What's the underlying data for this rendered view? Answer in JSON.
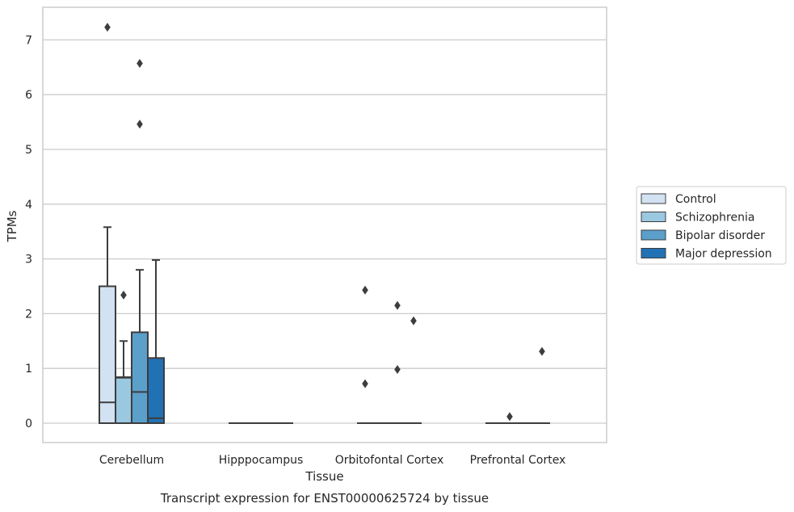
{
  "caption": "Transcript expression for ENST00000625724 by tissue",
  "chart_data": {
    "type": "box",
    "xlabel": "Tissue",
    "ylabel": "TPMs",
    "ylim": [
      -0.35,
      7.6
    ],
    "yticks": [
      0,
      1,
      2,
      3,
      4,
      5,
      6,
      7
    ],
    "grid": "horizontal",
    "legend_position": "right",
    "categories": [
      "Cerebellum",
      "Hipppocampus",
      "Orbitofontal Cortex",
      "Prefrontal Cortex"
    ],
    "series": [
      {
        "name": "Control",
        "color": "#d2e2f2",
        "boxes": [
          {
            "category": "Cerebellum",
            "whisker_low": 0,
            "q1": 0,
            "median": 0.38,
            "q3": 2.5,
            "whisker_high": 3.58,
            "outliers": [
              7.23
            ]
          },
          {
            "category": "Hipppocampus",
            "whisker_low": 0,
            "q1": 0,
            "median": 0,
            "q3": 0,
            "whisker_high": 0,
            "outliers": []
          },
          {
            "category": "Orbitofontal Cortex",
            "whisker_low": 0,
            "q1": 0,
            "median": 0,
            "q3": 0,
            "whisker_high": 0,
            "outliers": [
              2.43,
              0.72
            ]
          },
          {
            "category": "Prefrontal Cortex",
            "whisker_low": 0,
            "q1": 0,
            "median": 0,
            "q3": 0,
            "whisker_high": 0,
            "outliers": []
          }
        ]
      },
      {
        "name": "Schizophrenia",
        "color": "#9ac8e0",
        "boxes": [
          {
            "category": "Cerebellum",
            "whisker_low": 0,
            "q1": 0,
            "median": 0.83,
            "q3": 0.84,
            "whisker_high": 1.5,
            "outliers": [
              2.34
            ]
          },
          {
            "category": "Hipppocampus",
            "whisker_low": 0,
            "q1": 0,
            "median": 0,
            "q3": 0,
            "whisker_high": 0,
            "outliers": []
          },
          {
            "category": "Orbitofontal Cortex",
            "whisker_low": 0,
            "q1": 0,
            "median": 0,
            "q3": 0,
            "whisker_high": 0,
            "outliers": []
          },
          {
            "category": "Prefrontal Cortex",
            "whisker_low": 0,
            "q1": 0,
            "median": 0,
            "q3": 0,
            "whisker_high": 0,
            "outliers": [
              0.12
            ]
          }
        ]
      },
      {
        "name": "Bipolar disorder",
        "color": "#5b9fcb",
        "boxes": [
          {
            "category": "Cerebellum",
            "whisker_low": 0,
            "q1": 0,
            "median": 0.57,
            "q3": 1.66,
            "whisker_high": 2.8,
            "outliers": [
              6.57,
              5.46
            ]
          },
          {
            "category": "Hipppocampus",
            "whisker_low": 0,
            "q1": 0,
            "median": 0,
            "q3": 0,
            "whisker_high": 0,
            "outliers": []
          },
          {
            "category": "Orbitofontal Cortex",
            "whisker_low": 0,
            "q1": 0,
            "median": 0,
            "q3": 0,
            "whisker_high": 0,
            "outliers": [
              2.15,
              0.98
            ]
          },
          {
            "category": "Prefrontal Cortex",
            "whisker_low": 0,
            "q1": 0,
            "median": 0,
            "q3": 0,
            "whisker_high": 0,
            "outliers": []
          }
        ]
      },
      {
        "name": "Major depression",
        "color": "#2171b5",
        "boxes": [
          {
            "category": "Cerebellum",
            "whisker_low": 0,
            "q1": 0,
            "median": 0.09,
            "q3": 1.19,
            "whisker_high": 2.98,
            "outliers": []
          },
          {
            "category": "Hipppocampus",
            "whisker_low": 0,
            "q1": 0,
            "median": 0,
            "q3": 0,
            "whisker_high": 0,
            "outliers": []
          },
          {
            "category": "Orbitofontal Cortex",
            "whisker_low": 0,
            "q1": 0,
            "median": 0,
            "q3": 0,
            "whisker_high": 0,
            "outliers": [
              1.87
            ]
          },
          {
            "category": "Prefrontal Cortex",
            "whisker_low": 0,
            "q1": 0,
            "median": 0,
            "q3": 0,
            "whisker_high": 0,
            "outliers": [
              1.31
            ]
          }
        ]
      }
    ]
  }
}
